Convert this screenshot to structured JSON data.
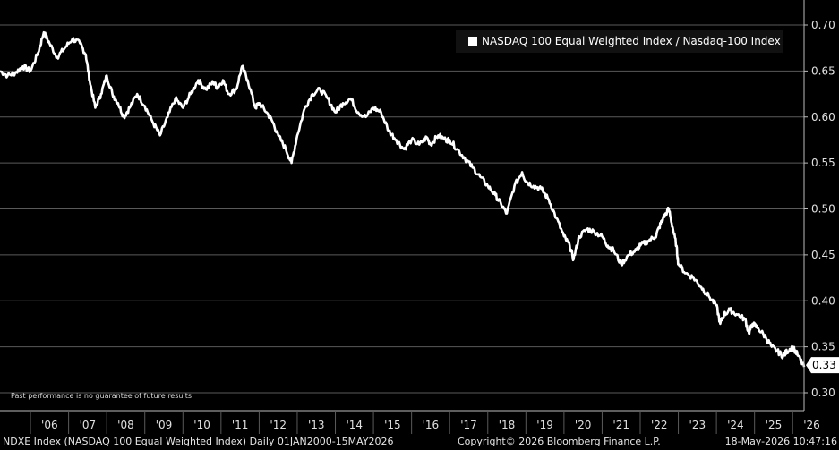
{
  "chart_data": {
    "type": "line",
    "title": "",
    "xlabel": "",
    "ylabel": "",
    "ylim": [
      0.3,
      0.7
    ],
    "y_ticks": [
      "0.30",
      "0.35",
      "0.40",
      "0.45",
      "0.50",
      "0.55",
      "0.60",
      "0.65",
      "0.70"
    ],
    "x_ticks": [
      "'06",
      "'07",
      "'08",
      "'09",
      "'10",
      "'11",
      "'12",
      "'13",
      "'14",
      "'15",
      "'16",
      "'17",
      "'18",
      "'19",
      "'20",
      "'21",
      "'22",
      "'23",
      "'24",
      "'25",
      "'26"
    ],
    "xlim": [
      2005.2,
      2026.3
    ],
    "grid": true,
    "legend_position": "top-right",
    "last_value_label": "0.33",
    "series": [
      {
        "name": "NASDAQ 100 Equal Weighted Index / Nasdaq-100 Index",
        "color": "#ffffff",
        "x": [
          2005.2,
          2005.4,
          2005.6,
          2005.8,
          2006.0,
          2006.2,
          2006.35,
          2006.5,
          2006.7,
          2006.9,
          2007.1,
          2007.3,
          2007.45,
          2007.55,
          2007.7,
          2007.85,
          2008.0,
          2008.15,
          2008.3,
          2008.45,
          2008.6,
          2008.8,
          2009.0,
          2009.2,
          2009.4,
          2009.6,
          2009.8,
          2010.0,
          2010.2,
          2010.4,
          2010.6,
          2010.8,
          2010.9,
          2011.05,
          2011.2,
          2011.4,
          2011.55,
          2011.7,
          2011.9,
          2012.0,
          2012.2,
          2012.35,
          2012.5,
          2012.7,
          2012.85,
          2013.0,
          2013.2,
          2013.4,
          2013.6,
          2013.8,
          2014.0,
          2014.2,
          2014.4,
          2014.6,
          2014.8,
          2015.0,
          2015.2,
          2015.4,
          2015.6,
          2015.8,
          2016.0,
          2016.2,
          2016.4,
          2016.5,
          2016.7,
          2016.9,
          2017.0,
          2017.2,
          2017.4,
          2017.6,
          2017.8,
          2018.0,
          2018.2,
          2018.35,
          2018.5,
          2018.7,
          2018.9,
          2019.0,
          2019.2,
          2019.4,
          2019.6,
          2019.8,
          2020.0,
          2020.15,
          2020.25,
          2020.4,
          2020.6,
          2020.8,
          2021.0,
          2021.15,
          2021.3,
          2021.5,
          2021.7,
          2021.9,
          2022.0,
          2022.2,
          2022.4,
          2022.5,
          2022.6,
          2022.75,
          2022.85,
          2022.95,
          2023.0,
          2023.2,
          2023.4,
          2023.6,
          2023.8,
          2024.0,
          2024.1,
          2024.2,
          2024.35,
          2024.55,
          2024.75,
          2024.85,
          2024.95,
          2025.1,
          2025.3,
          2025.45,
          2025.6,
          2025.75,
          2025.85,
          2026.0,
          2026.15,
          2026.3
        ],
        "y": [
          0.65,
          0.645,
          0.648,
          0.655,
          0.65,
          0.67,
          0.692,
          0.68,
          0.665,
          0.675,
          0.685,
          0.68,
          0.668,
          0.64,
          0.61,
          0.625,
          0.645,
          0.625,
          0.615,
          0.6,
          0.61,
          0.625,
          0.612,
          0.595,
          0.58,
          0.6,
          0.62,
          0.61,
          0.625,
          0.64,
          0.63,
          0.638,
          0.632,
          0.64,
          0.625,
          0.63,
          0.655,
          0.64,
          0.61,
          0.615,
          0.605,
          0.595,
          0.58,
          0.565,
          0.55,
          0.58,
          0.61,
          0.625,
          0.63,
          0.62,
          0.605,
          0.615,
          0.62,
          0.605,
          0.6,
          0.61,
          0.605,
          0.585,
          0.575,
          0.565,
          0.575,
          0.57,
          0.578,
          0.57,
          0.58,
          0.575,
          0.575,
          0.565,
          0.555,
          0.545,
          0.535,
          0.525,
          0.515,
          0.505,
          0.495,
          0.525,
          0.54,
          0.53,
          0.525,
          0.522,
          0.51,
          0.49,
          0.47,
          0.46,
          0.445,
          0.47,
          0.478,
          0.475,
          0.47,
          0.46,
          0.455,
          0.44,
          0.45,
          0.455,
          0.46,
          0.465,
          0.47,
          0.48,
          0.49,
          0.5,
          0.48,
          0.46,
          0.44,
          0.43,
          0.425,
          0.415,
          0.405,
          0.395,
          0.375,
          0.385,
          0.39,
          0.385,
          0.38,
          0.365,
          0.375,
          0.37,
          0.36,
          0.35,
          0.345,
          0.34,
          0.345,
          0.35,
          0.34,
          0.328
        ]
      }
    ]
  },
  "legend": {
    "label": "NASDAQ 100 Equal Weighted Index / Nasdaq-100 Index"
  },
  "disclaimer": "Past performance is no guarantee of future results",
  "footer": {
    "left": "NDXE Index (NASDAQ 100 Equal Weighted Index) Daily 01JAN2000-15MAY2026",
    "center": "Copyright© 2026 Bloomberg Finance L.P.",
    "right": "18-May-2026 10:47:16"
  }
}
